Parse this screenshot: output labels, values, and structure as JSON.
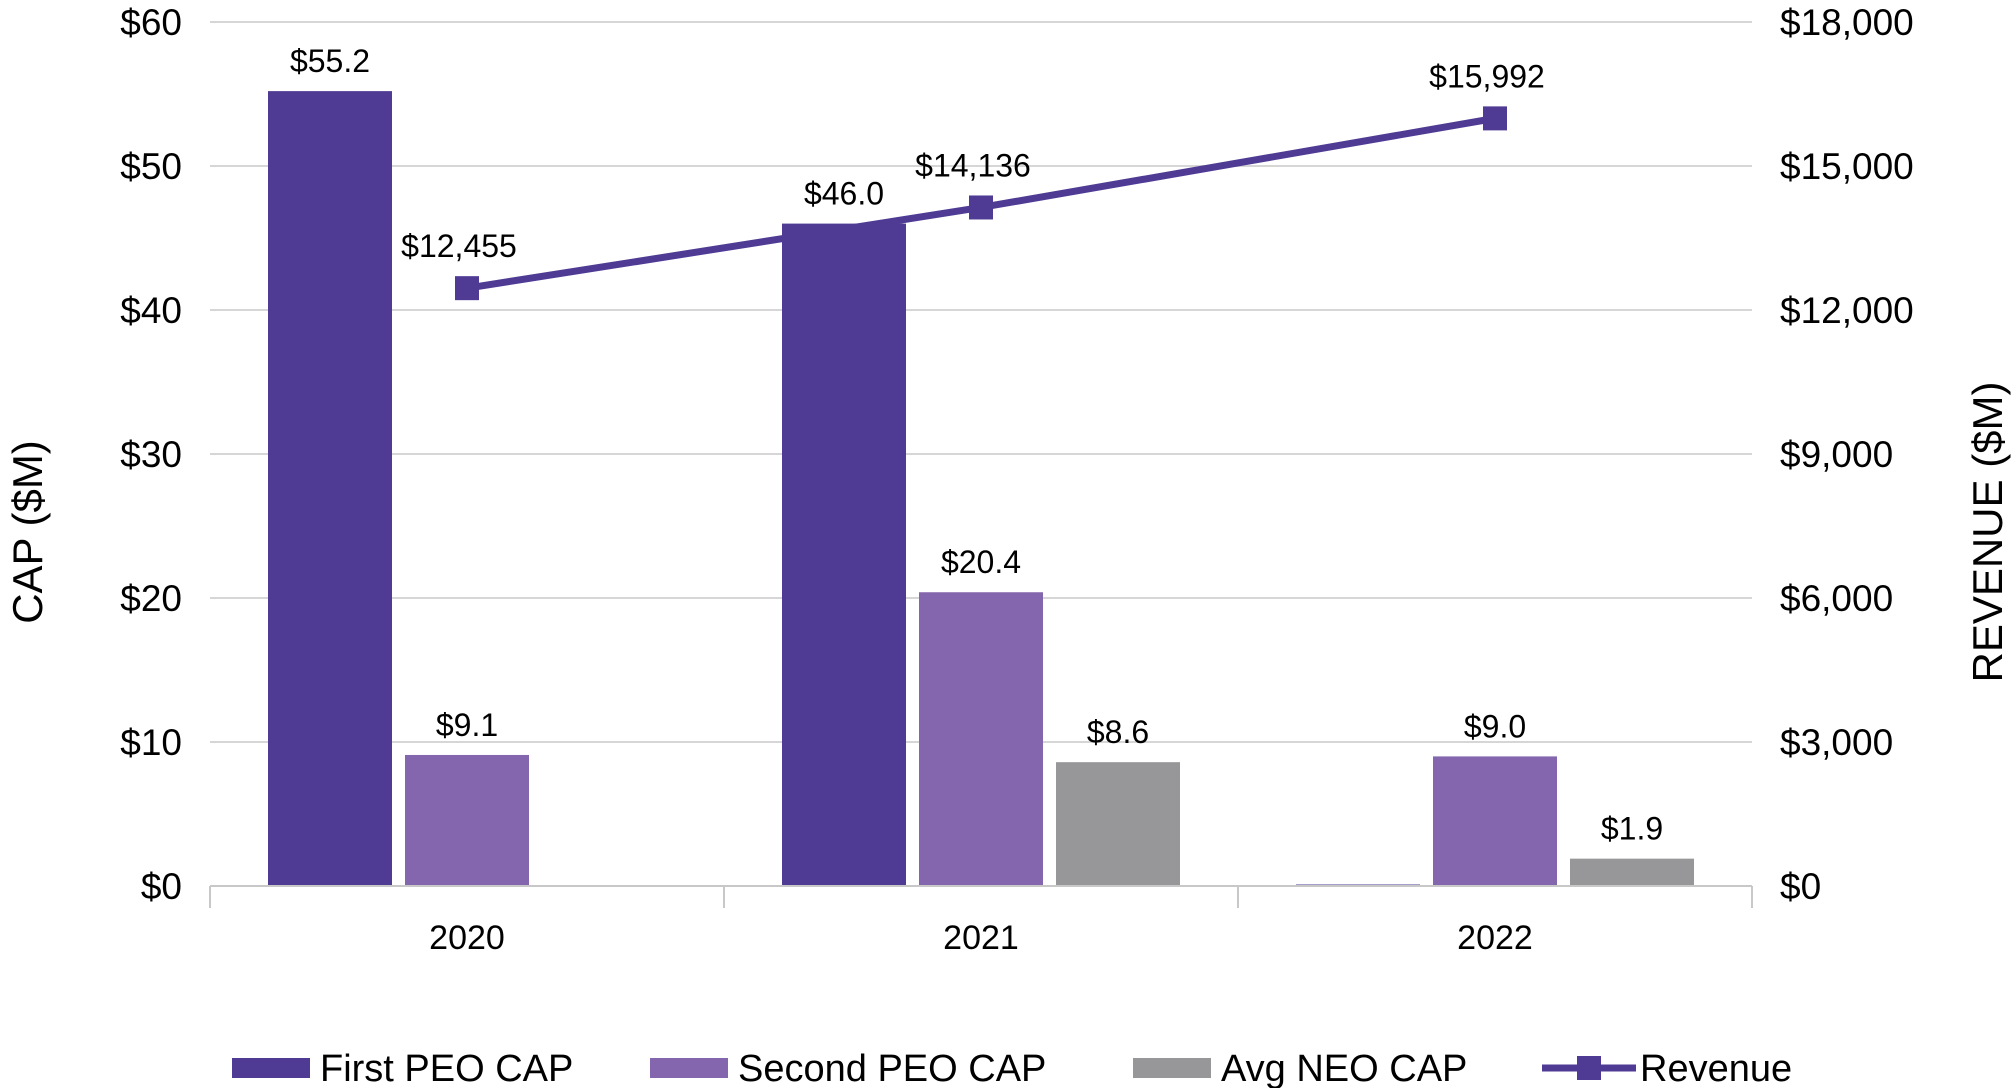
{
  "chart_data": {
    "type": "bar",
    "categories": [
      "2020",
      "2021",
      "2022"
    ],
    "series": [
      {
        "name": "First PEO CAP",
        "kind": "bar",
        "axis": "left",
        "color": "#4f3b94",
        "values": [
          55.2,
          46.0,
          0
        ],
        "labels": [
          "$55.2",
          "$46.0",
          ""
        ]
      },
      {
        "name": "Second PEO CAP",
        "kind": "bar",
        "axis": "left",
        "color": "#8366ad",
        "values": [
          9.1,
          20.4,
          9.0
        ],
        "labels": [
          "$9.1",
          "$20.4",
          "$9.0"
        ]
      },
      {
        "name": "Avg NEO CAP",
        "kind": "bar",
        "axis": "left",
        "color": "#97979a",
        "values": [
          null,
          8.6,
          1.9
        ],
        "labels": [
          "",
          "$8.6",
          "$1.9"
        ]
      },
      {
        "name": "Revenue",
        "kind": "line",
        "axis": "right",
        "color": "#4f3b94",
        "values": [
          12455,
          14136,
          15992
        ],
        "labels": [
          "$12,455",
          "$14,136",
          "$15,992"
        ]
      }
    ],
    "ylabel": "CAP ($M)",
    "y2label": "REVENUE ($M)",
    "ylim": [
      0,
      60
    ],
    "y2lim": [
      0,
      18000
    ],
    "yticks": [
      "$0",
      "$10",
      "$20",
      "$30",
      "$40",
      "$50",
      "$60"
    ],
    "y2ticks": [
      "$0",
      "$3,000",
      "$6,000",
      "$9,000",
      "$12,000",
      "$15,000",
      "$18,000"
    ],
    "grid": true,
    "legend": "bottom"
  }
}
